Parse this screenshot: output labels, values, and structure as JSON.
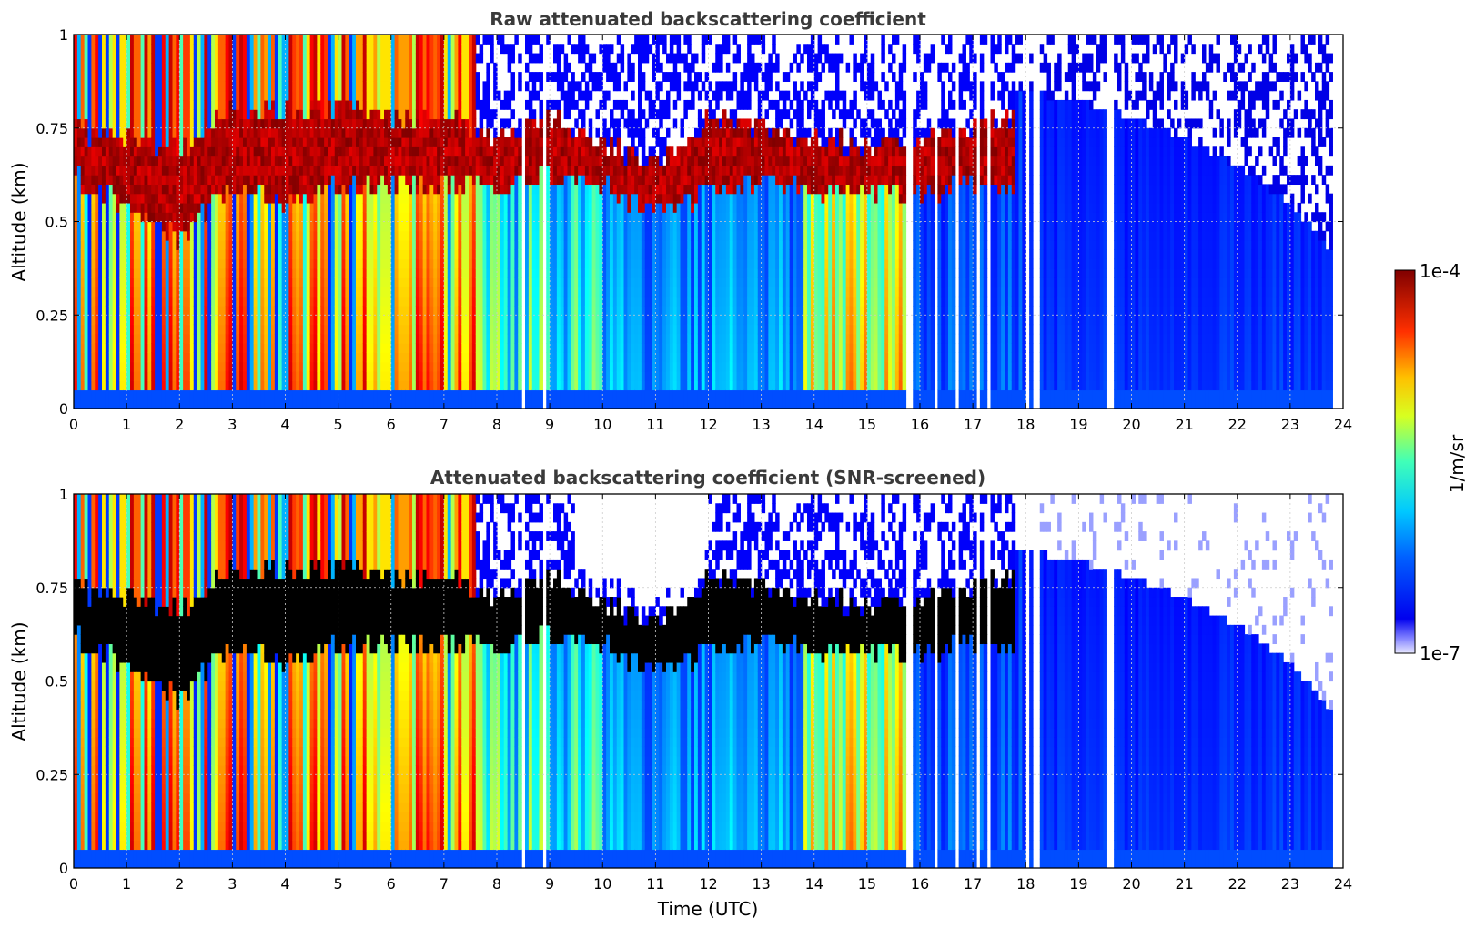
{
  "chart_data": {
    "type": "heatmap",
    "colormap": "jet",
    "panels": [
      {
        "title": "Raw attenuated backscattering coefficient",
        "xlabel": "",
        "ylabel": "Altitude (km)",
        "xlim": [
          0,
          24
        ],
        "ylim": [
          0,
          1
        ],
        "xticks": [
          "0",
          "1",
          "2",
          "3",
          "4",
          "5",
          "6",
          "7",
          "8",
          "9",
          "10",
          "11",
          "12",
          "13",
          "14",
          "15",
          "16",
          "17",
          "18",
          "19",
          "20",
          "21",
          "22",
          "23",
          "24"
        ],
        "yticks": [
          "0",
          "0.25",
          "0.5",
          "0.75",
          "1"
        ],
        "grid": true,
        "screened": false
      },
      {
        "title": "Attenuated backscattering coefficient (SNR-screened)",
        "xlabel": "Time (UTC)",
        "ylabel": "Altitude (km)",
        "xlim": [
          0,
          24
        ],
        "ylim": [
          0,
          1
        ],
        "xticks": [
          "0",
          "1",
          "2",
          "3",
          "4",
          "5",
          "6",
          "7",
          "8",
          "9",
          "10",
          "11",
          "12",
          "13",
          "14",
          "15",
          "16",
          "17",
          "18",
          "19",
          "20",
          "21",
          "22",
          "23",
          "24"
        ],
        "yticks": [
          "0",
          "0.25",
          "0.5",
          "0.75",
          "1"
        ],
        "grid": true,
        "screened": true
      }
    ],
    "colorbar": {
      "label": "1/m/sr",
      "max_label": "1e-4",
      "min_label": "1e-7",
      "scale": "log",
      "range": [
        1e-07,
        0.0001
      ]
    },
    "cloud_layer": {
      "description_units": "Altitude (km) vs Time (UTC)",
      "time": [
        0,
        1,
        2,
        3,
        4,
        5,
        6,
        7,
        8,
        9,
        10,
        11,
        12,
        13,
        14,
        15,
        16,
        17,
        17.5
      ],
      "base_altitude": [
        0.62,
        0.55,
        0.45,
        0.6,
        0.55,
        0.6,
        0.6,
        0.6,
        0.6,
        0.62,
        0.6,
        0.52,
        0.58,
        0.62,
        0.58,
        0.58,
        0.58,
        0.6,
        0.6
      ],
      "top_altitude": [
        0.75,
        0.72,
        0.68,
        0.8,
        0.8,
        0.8,
        0.78,
        0.78,
        0.72,
        0.78,
        0.7,
        0.66,
        0.78,
        0.75,
        0.72,
        0.7,
        0.72,
        0.75,
        0.78
      ]
    },
    "data_gaps_utc": [
      8.5,
      8.9,
      15.8,
      16.3,
      16.7,
      17.1,
      17.3,
      18.05,
      18.2,
      19.6
    ],
    "data_end_utc": 23.8,
    "noise_top_altitude": {
      "time": [
        18,
        19,
        20,
        21,
        22,
        23,
        23.8
      ],
      "altitude": [
        0.85,
        0.82,
        0.78,
        0.72,
        0.65,
        0.55,
        0.42
      ]
    }
  }
}
